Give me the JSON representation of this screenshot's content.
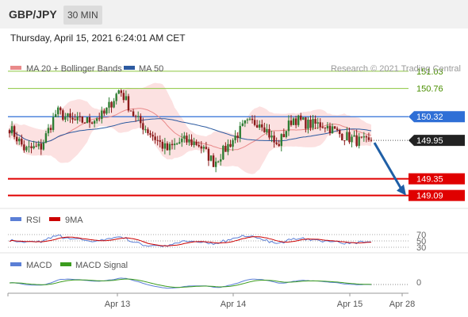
{
  "header": {
    "pair": "GBP/JPY",
    "timeframe": "30 MIN"
  },
  "timestamp": "Thursday, April 15, 2021 6:24:01 AM CET",
  "copyright": "Research © 2021 Trading Central",
  "colors": {
    "bollinger": "#e98a8a",
    "ma50": "#2c5aa0",
    "resistance": "#8dc63f",
    "pivot": "#2f6fd6",
    "support": "#e00000",
    "arrow": "#1f5fa6",
    "candle_up": "#2e7d32",
    "candle_down": "#8b1a1a",
    "rsi": "#5b7fd6",
    "rsi_ma": "#cc0000",
    "macd": "#5b7fd6",
    "macd_signal": "#3b9c1e"
  },
  "legend": {
    "price": [
      {
        "label": "MA 20 + Bollinger Bands"
      },
      {
        "label": "MA 50"
      }
    ],
    "rsi": [
      {
        "label": "RSI"
      },
      {
        "label": "9MA"
      }
    ],
    "macd": [
      {
        "label": "MACD"
      },
      {
        "label": "MACD Signal"
      }
    ]
  },
  "chart_data": [
    {
      "type": "candlestick",
      "pair": "GBP/JPY",
      "timeframe": "30 MIN",
      "ylim": [
        148.9,
        151.3
      ],
      "levels": [
        {
          "value": 151.03,
          "label": "151.03",
          "kind": "resistance"
        },
        {
          "value": 150.76,
          "label": "150.76",
          "kind": "resistance"
        },
        {
          "value": 150.32,
          "label": "150.32",
          "kind": "pivot"
        },
        {
          "value": 149.95,
          "label": "149.95",
          "kind": "last"
        },
        {
          "value": 149.35,
          "label": "149.35",
          "kind": "support"
        },
        {
          "value": 149.09,
          "label": "149.09",
          "kind": "support"
        }
      ],
      "x_ticks": [
        "Apr 13",
        "Apr 14",
        "Apr 15",
        "Apr 28"
      ],
      "close_keypoints": [
        150.15,
        149.8,
        149.85,
        150.4,
        150.25,
        150.25,
        150.35,
        150.75,
        150.3,
        150.05,
        149.8,
        149.95,
        149.9,
        149.6,
        149.9,
        150.2,
        150.25,
        149.85,
        150.3,
        150.2,
        150.2,
        150.05,
        149.95,
        149.9
      ],
      "series": [
        {
          "name": "MA 20 + Bollinger Bands"
        },
        {
          "name": "MA 50"
        }
      ],
      "arrow": {
        "from": 149.95,
        "to": 149.09,
        "direction": "down"
      }
    },
    {
      "type": "line",
      "series": [
        {
          "name": "RSI"
        },
        {
          "name": "9MA"
        }
      ],
      "y_ticks": [
        "70",
        "50",
        "30"
      ],
      "ylim": [
        20,
        80
      ]
    },
    {
      "type": "line",
      "series": [
        {
          "name": "MACD"
        },
        {
          "name": "MACD Signal"
        }
      ],
      "y_ticks": [
        "0"
      ]
    }
  ]
}
